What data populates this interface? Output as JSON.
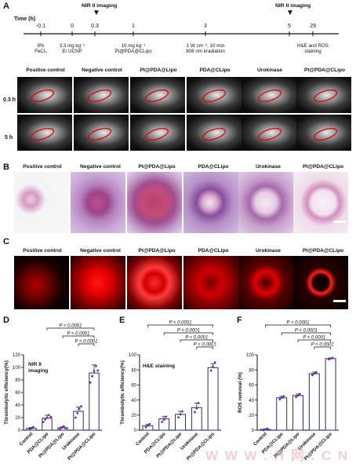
{
  "panels": {
    "A": "A",
    "B": "B",
    "C": "C",
    "D": "D",
    "E": "E",
    "F": "F"
  },
  "timeline": {
    "axis_label": "Time  (h)",
    "ticks": [
      "-0.1",
      "0",
      "0.3",
      "1",
      "3",
      "5",
      "29"
    ],
    "imaging_label_1": "NIR II imaging",
    "imaging_label_2": "NIR II imaging",
    "events": [
      {
        "line1": "9%",
        "line2": "FeCl₃"
      },
      {
        "line1": "3.3 mg kg⁻¹",
        "line2": "Er UCNP"
      },
      {
        "line1": "10 mg kg⁻¹",
        "line2": "Pt@PDA@CLipo"
      },
      {
        "line1": "1 W cm⁻², 10 min",
        "line2": "808 nm irradiation"
      },
      {
        "line1": "H&E and ROS",
        "line2": "staining"
      }
    ]
  },
  "groups": [
    "Positive control",
    "Negative control",
    "Pt@PDA@Lipo",
    "PDA@CLipo",
    "Urokinase",
    "Pt@PDA@CLipo"
  ],
  "rows_a": [
    "0.3 h",
    "5 h"
  ],
  "chart_data": [
    {
      "type": "bar",
      "panel": "D",
      "title": "NIR II imaging",
      "ylabel": "Thrombolytic efficiency(%)",
      "xlabel": "",
      "ylim": [
        0,
        120
      ],
      "yticks": [
        0,
        20,
        40,
        60,
        80,
        100,
        120
      ],
      "categories": [
        "Control",
        "PDA@CLipo",
        "Pt@PDA@Lipo",
        "Urokinase",
        "Pt@PDA@CLipo"
      ],
      "values": [
        3,
        19,
        4,
        30,
        91
      ],
      "errors": [
        1.5,
        5,
        1.5,
        7,
        13
      ],
      "points": [
        [
          2,
          3,
          5
        ],
        [
          13,
          17,
          20,
          24,
          21
        ],
        [
          2,
          4,
          6,
          3
        ],
        [
          20,
          27,
          34,
          38
        ],
        [
          76,
          86,
          94,
          102,
          95
        ]
      ],
      "significance": [
        "P < 0.0001",
        "P < 0.0001",
        "P < 0.0001"
      ]
    },
    {
      "type": "bar",
      "panel": "E",
      "title": "H&E staining",
      "ylabel": "Thrombolytic efficiency(%)",
      "xlabel": "",
      "ylim": [
        0,
        100
      ],
      "yticks": [
        0,
        20,
        40,
        60,
        80,
        100
      ],
      "categories": [
        "Control",
        "PDA@CLipo",
        "Pt@PDA@Lipo",
        "Urokinase",
        "Pt@PDA@CLipo"
      ],
      "values": [
        6,
        15,
        21,
        30,
        83
      ],
      "errors": [
        2,
        3,
        4,
        6,
        5
      ],
      "points": [
        [
          4,
          6,
          8
        ],
        [
          11,
          14,
          18
        ],
        [
          17,
          21,
          25
        ],
        [
          24,
          29,
          36
        ],
        [
          79,
          84,
          90
        ]
      ],
      "significance": [
        "P < 0.0001",
        "P < 0.0001",
        "P < 0.0001",
        "P < 0.0001"
      ]
    },
    {
      "type": "bar",
      "panel": "F",
      "title": "",
      "ylabel": "ROS removal (%)",
      "xlabel": "",
      "ylim": [
        0,
        100
      ],
      "yticks": [
        0,
        20,
        40,
        60,
        80,
        100
      ],
      "categories": [
        "Control",
        "PDA@CLipo",
        "Pt@PDA@Lipo",
        "Urokinase",
        "Pt@PDA@CLipo"
      ],
      "values": [
        1,
        43,
        46,
        75,
        95
      ],
      "errors": [
        0.5,
        2,
        2,
        2,
        1
      ],
      "points": [
        [
          0,
          1,
          2
        ],
        [
          41,
          43,
          45
        ],
        [
          44,
          46,
          48
        ],
        [
          73,
          75,
          77
        ],
        [
          94,
          95,
          96
        ]
      ],
      "significance": [
        "P < 0.0001",
        "P < 0.0001",
        "P < 0.0001",
        "P < 0.0001"
      ]
    }
  ],
  "watermark": "W W W . H 网 . C N"
}
